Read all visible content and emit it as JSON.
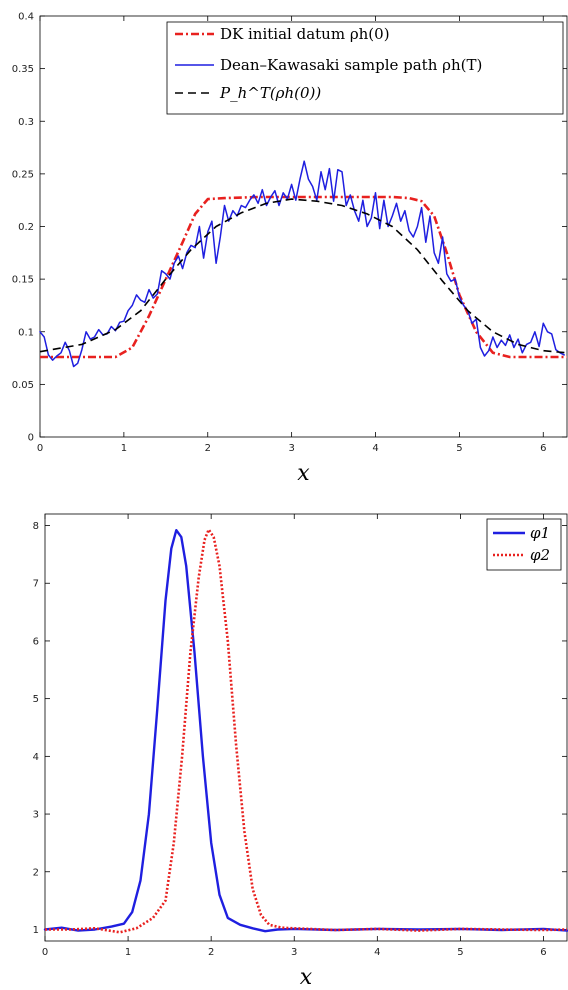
{
  "chart_data": [
    {
      "type": "line",
      "xlabel": "x",
      "ylabel": "",
      "xlim": [
        0,
        6.283
      ],
      "ylim": [
        0,
        0.4
      ],
      "x_ticks": [
        "0",
        "1",
        "2",
        "3",
        "4",
        "5",
        "6"
      ],
      "y_ticks": [
        "0",
        "0.05",
        "0.1",
        "0.15",
        "0.2",
        "0.25",
        "0.3",
        "0.35",
        "0.4"
      ],
      "legend_position": "top-right",
      "series": [
        {
          "name": "DK initial datum ρh(0)",
          "color": "#e8211f",
          "style": "dash-dot",
          "x": [
            0,
            0.5,
            0.9,
            1.1,
            1.3,
            1.5,
            1.7,
            1.85,
            2.0,
            2.2,
            2.6,
            3.0,
            3.4,
            3.8,
            4.2,
            4.4,
            4.55,
            4.7,
            4.85,
            5.0,
            5.2,
            5.4,
            5.6,
            6.0,
            6.283
          ],
          "values": [
            0.076,
            0.076,
            0.076,
            0.085,
            0.115,
            0.15,
            0.185,
            0.212,
            0.226,
            0.227,
            0.228,
            0.228,
            0.228,
            0.228,
            0.228,
            0.227,
            0.224,
            0.21,
            0.175,
            0.135,
            0.1,
            0.08,
            0.076,
            0.076,
            0.076
          ]
        },
        {
          "name": "Dean–Kawasaki sample path ρh(T)",
          "color": "#1f1fe0",
          "style": "solid",
          "x": [
            0,
            0.05,
            0.1,
            0.15,
            0.2,
            0.25,
            0.3,
            0.35,
            0.4,
            0.45,
            0.5,
            0.55,
            0.6,
            0.65,
            0.7,
            0.75,
            0.8,
            0.85,
            0.9,
            0.95,
            1.0,
            1.05,
            1.1,
            1.15,
            1.2,
            1.25,
            1.3,
            1.35,
            1.4,
            1.45,
            1.5,
            1.55,
            1.6,
            1.65,
            1.7,
            1.75,
            1.8,
            1.85,
            1.9,
            1.95,
            2.0,
            2.05,
            2.1,
            2.15,
            2.2,
            2.25,
            2.3,
            2.35,
            2.4,
            2.45,
            2.5,
            2.55,
            2.6,
            2.65,
            2.7,
            2.75,
            2.8,
            2.85,
            2.9,
            2.95,
            3.0,
            3.05,
            3.1,
            3.15,
            3.2,
            3.25,
            3.3,
            3.35,
            3.4,
            3.45,
            3.5,
            3.55,
            3.6,
            3.65,
            3.7,
            3.75,
            3.8,
            3.85,
            3.9,
            3.95,
            4.0,
            4.05,
            4.1,
            4.15,
            4.2,
            4.25,
            4.3,
            4.35,
            4.4,
            4.45,
            4.5,
            4.55,
            4.6,
            4.65,
            4.7,
            4.75,
            4.8,
            4.85,
            4.9,
            4.95,
            5.0,
            5.05,
            5.1,
            5.15,
            5.2,
            5.25,
            5.3,
            5.35,
            5.4,
            5.45,
            5.5,
            5.55,
            5.6,
            5.65,
            5.7,
            5.75,
            5.8,
            5.85,
            5.9,
            5.95,
            6.0,
            6.05,
            6.1,
            6.15,
            6.2,
            6.25
          ],
          "values": [
            0.1,
            0.095,
            0.078,
            0.073,
            0.077,
            0.08,
            0.09,
            0.082,
            0.067,
            0.07,
            0.083,
            0.1,
            0.093,
            0.095,
            0.102,
            0.097,
            0.098,
            0.105,
            0.101,
            0.109,
            0.11,
            0.12,
            0.125,
            0.135,
            0.13,
            0.128,
            0.14,
            0.132,
            0.136,
            0.158,
            0.155,
            0.15,
            0.165,
            0.172,
            0.16,
            0.175,
            0.182,
            0.18,
            0.2,
            0.17,
            0.195,
            0.205,
            0.165,
            0.19,
            0.22,
            0.205,
            0.215,
            0.21,
            0.22,
            0.218,
            0.225,
            0.23,
            0.222,
            0.235,
            0.22,
            0.228,
            0.234,
            0.22,
            0.232,
            0.226,
            0.24,
            0.225,
            0.245,
            0.262,
            0.245,
            0.238,
            0.225,
            0.252,
            0.235,
            0.255,
            0.224,
            0.254,
            0.252,
            0.22,
            0.23,
            0.215,
            0.205,
            0.225,
            0.2,
            0.208,
            0.232,
            0.198,
            0.225,
            0.2,
            0.21,
            0.222,
            0.205,
            0.215,
            0.196,
            0.19,
            0.2,
            0.218,
            0.185,
            0.21,
            0.175,
            0.165,
            0.19,
            0.155,
            0.148,
            0.15,
            0.133,
            0.125,
            0.12,
            0.108,
            0.112,
            0.085,
            0.077,
            0.082,
            0.095,
            0.085,
            0.092,
            0.087,
            0.097,
            0.085,
            0.093,
            0.08,
            0.088,
            0.09,
            0.1,
            0.086,
            0.108,
            0.1,
            0.098,
            0.083,
            0.08,
            0.078
          ]
        },
        {
          "name": "P_h^T(ρh(0))",
          "color": "#000000",
          "style": "dashed",
          "x": [
            0,
            0.5,
            0.9,
            1.2,
            1.5,
            1.8,
            2.1,
            2.4,
            2.7,
            3.0,
            3.3,
            3.6,
            3.9,
            4.2,
            4.5,
            4.8,
            5.1,
            5.4,
            5.7,
            6.0,
            6.283
          ],
          "values": [
            0.081,
            0.088,
            0.102,
            0.12,
            0.15,
            0.178,
            0.2,
            0.213,
            0.222,
            0.226,
            0.224,
            0.22,
            0.212,
            0.2,
            0.178,
            0.148,
            0.12,
            0.1,
            0.088,
            0.082,
            0.08
          ]
        }
      ]
    },
    {
      "type": "line",
      "xlabel": "x",
      "ylabel": "",
      "xlim": [
        0,
        6.283
      ],
      "ylim": [
        0.8,
        8.2
      ],
      "x_ticks": [
        "0",
        "1",
        "2",
        "3",
        "4",
        "5",
        "6"
      ],
      "y_ticks": [
        "1",
        "2",
        "3",
        "4",
        "5",
        "6",
        "7",
        "8"
      ],
      "legend_position": "top-right",
      "series": [
        {
          "name": "φ1",
          "color": "#1f1fe0",
          "style": "solid",
          "x": [
            0,
            0.2,
            0.4,
            0.6,
            0.8,
            0.95,
            1.05,
            1.15,
            1.25,
            1.35,
            1.45,
            1.52,
            1.58,
            1.64,
            1.7,
            1.8,
            1.9,
            2.0,
            2.1,
            2.2,
            2.35,
            2.5,
            2.65,
            2.8,
            3.0,
            3.5,
            4.0,
            4.5,
            5.0,
            5.5,
            6.0,
            6.283
          ],
          "values": [
            1.0,
            1.03,
            0.98,
            1.0,
            1.05,
            1.1,
            1.3,
            1.85,
            3.0,
            4.8,
            6.7,
            7.6,
            7.92,
            7.8,
            7.3,
            5.8,
            4.0,
            2.5,
            1.6,
            1.2,
            1.08,
            1.02,
            0.97,
            1.0,
            1.01,
            0.99,
            1.01,
            1.0,
            1.01,
            0.99,
            1.01,
            0.98
          ]
        },
        {
          "name": "φ2",
          "color": "#e8211f",
          "style": "dotted",
          "x": [
            0,
            0.3,
            0.6,
            0.9,
            1.1,
            1.3,
            1.45,
            1.55,
            1.65,
            1.75,
            1.85,
            1.92,
            1.97,
            2.03,
            2.1,
            2.2,
            2.3,
            2.4,
            2.5,
            2.6,
            2.7,
            2.85,
            3.0,
            3.5,
            4.0,
            4.5,
            5.0,
            5.5,
            6.0,
            6.283
          ],
          "values": [
            1.0,
            1.0,
            1.02,
            0.95,
            1.02,
            1.2,
            1.5,
            2.5,
            4.0,
            5.8,
            7.1,
            7.75,
            7.93,
            7.8,
            7.3,
            6.0,
            4.2,
            2.7,
            1.7,
            1.25,
            1.08,
            1.03,
            1.02,
            0.99,
            1.01,
            0.98,
            1.01,
            1.0,
            0.99,
            1.0
          ]
        }
      ]
    }
  ]
}
